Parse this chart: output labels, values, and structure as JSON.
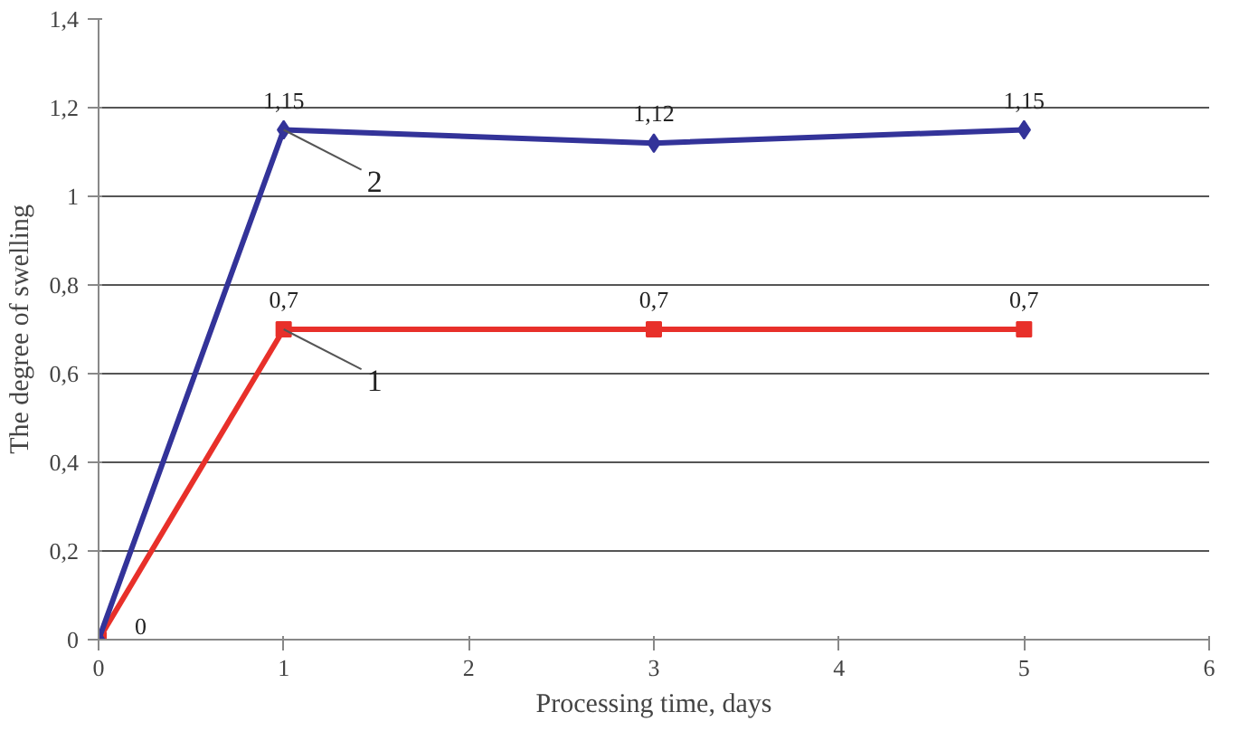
{
  "chart_data": {
    "type": "line",
    "xlabel": "Processing time, days",
    "ylabel": "The degree of swelling",
    "x": [
      0,
      1,
      3,
      5
    ],
    "series": [
      {
        "name": "1",
        "color": "#e8302a",
        "marker": "square",
        "values": [
          0,
          0.7,
          0.7,
          0.7
        ],
        "value_labels": [
          null,
          "0,7",
          "0,7",
          "0,7"
        ]
      },
      {
        "name": "2",
        "color": "#333399",
        "marker": "diamond",
        "values": [
          0,
          1.15,
          1.12,
          1.15
        ],
        "value_labels": [
          "0",
          "1,15",
          "1,12",
          "1,15"
        ]
      }
    ],
    "xlim": [
      0,
      6
    ],
    "xticks": [
      0,
      1,
      2,
      3,
      4,
      5,
      6
    ],
    "ylim": [
      0,
      1.4
    ],
    "yticks": [
      {
        "value": 0,
        "label": "0"
      },
      {
        "value": 0.2,
        "label": "0,2"
      },
      {
        "value": 0.4,
        "label": "0,4"
      },
      {
        "value": 0.6,
        "label": "0,6"
      },
      {
        "value": 0.8,
        "label": "0,8"
      },
      {
        "value": 1,
        "label": "1"
      },
      {
        "value": 1.2,
        "label": "1,2"
      },
      {
        "value": 1.4,
        "label": "1,4"
      }
    ],
    "grid": "y",
    "line_style": "solid"
  }
}
